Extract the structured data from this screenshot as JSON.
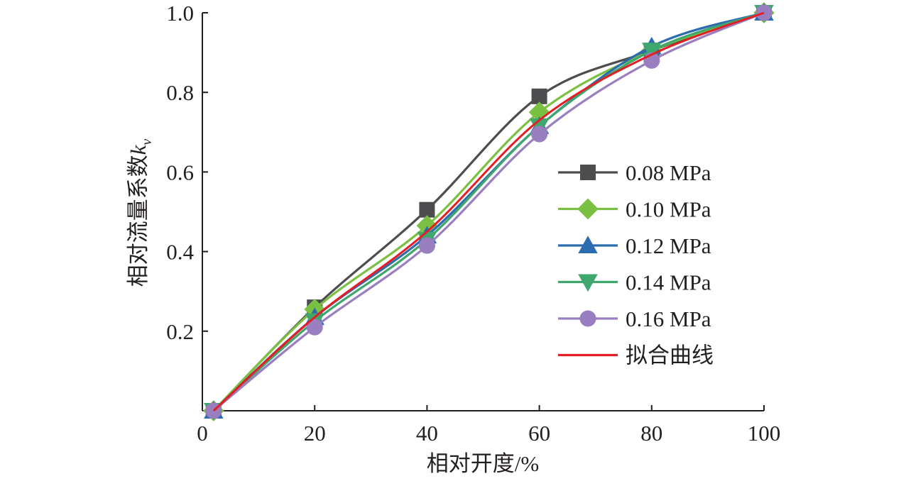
{
  "chart_data": {
    "type": "line",
    "title": "",
    "xlabel": "相对开度/%",
    "ylabel": "相对流量系数",
    "ylabel_symbol": "k",
    "ylabel_subscript": "v",
    "xlim": [
      0,
      100
    ],
    "ylim": [
      0,
      1.0
    ],
    "x_ticks": [
      "0",
      "20",
      "40",
      "60",
      "80",
      "100"
    ],
    "y_ticks": [
      "0.2",
      "0.4",
      "0.6",
      "0.8",
      "1.0"
    ],
    "x_tick_values": [
      0,
      20,
      40,
      60,
      80,
      100
    ],
    "y_tick_values": [
      0.2,
      0.4,
      0.6,
      0.8,
      1.0
    ],
    "x": [
      2,
      20,
      40,
      60,
      80,
      100
    ],
    "legend_position": "right",
    "grid": false,
    "series": [
      {
        "name": "0.08 MPa",
        "values": [
          0,
          0.26,
          0.505,
          0.79,
          0.905,
          1.0
        ],
        "color": "#4d4d4f",
        "marker": "square"
      },
      {
        "name": "0.10 MPa",
        "values": [
          0,
          0.255,
          0.465,
          0.75,
          0.905,
          1.0
        ],
        "color": "#7ac143",
        "marker": "diamond"
      },
      {
        "name": "0.12 MPa",
        "values": [
          0,
          0.235,
          0.44,
          0.715,
          0.915,
          1.0
        ],
        "color": "#2b6cb0",
        "marker": "triangle-up"
      },
      {
        "name": "0.14 MPa",
        "values": [
          0,
          0.225,
          0.43,
          0.715,
          0.905,
          1.0
        ],
        "color": "#3fa66e",
        "marker": "triangle-down"
      },
      {
        "name": "0.16 MPa",
        "values": [
          0,
          0.21,
          0.415,
          0.695,
          0.88,
          1.0
        ],
        "color": "#9a7fc0",
        "marker": "circle"
      },
      {
        "name": "拟合曲线",
        "values": [
          0,
          0.235,
          0.45,
          0.73,
          0.895,
          1.0
        ],
        "color": "#e31e24",
        "marker": "none"
      }
    ]
  }
}
